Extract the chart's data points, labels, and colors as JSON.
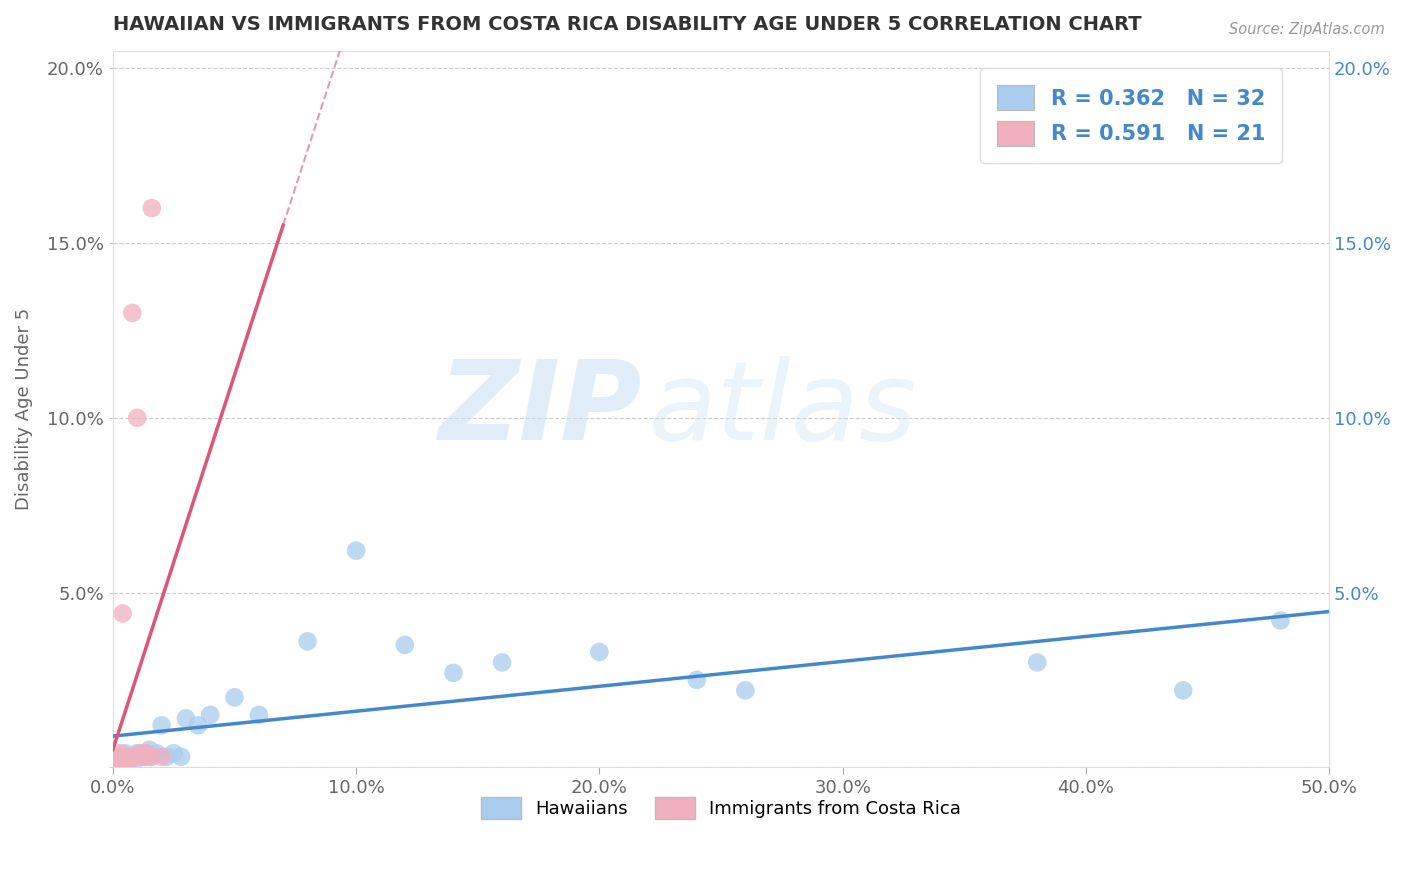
{
  "title": "HAWAIIAN VS IMMIGRANTS FROM COSTA RICA DISABILITY AGE UNDER 5 CORRELATION CHART",
  "source_text": "Source: ZipAtlas.com",
  "ylabel": "Disability Age Under 5",
  "xlim": [
    0.0,
    0.5
  ],
  "ylim": [
    0.0,
    0.205
  ],
  "xticks": [
    0.0,
    0.1,
    0.2,
    0.3,
    0.4,
    0.5
  ],
  "xticklabels": [
    "0.0%",
    "10.0%",
    "20.0%",
    "30.0%",
    "40.0%",
    "50.0%"
  ],
  "yticks": [
    0.0,
    0.05,
    0.1,
    0.15,
    0.2
  ],
  "yticklabels": [
    "",
    "5.0%",
    "10.0%",
    "15.0%",
    "20.0%"
  ],
  "hawaiian_color": "#aaccee",
  "costarica_color": "#f0b0c0",
  "hawaiian_line_color": "#4488cc",
  "costarica_line_color": "#dd5577",
  "R_hawaiian": 0.362,
  "N_hawaiian": 32,
  "R_costarica": 0.591,
  "N_costarica": 21,
  "legend_label_hawaiian": "Hawaiians",
  "legend_label_costarica": "Immigrants from Costa Rica",
  "watermark_zip": "ZIP",
  "watermark_atlas": "atlas",
  "background_color": "#ffffff",
  "grid_color": "#cccccc",
  "hawaiian_x": [
    0.002,
    0.004,
    0.005,
    0.006,
    0.008,
    0.009,
    0.01,
    0.012,
    0.013,
    0.015,
    0.016,
    0.018,
    0.02,
    0.022,
    0.025,
    0.028,
    0.03,
    0.035,
    0.04,
    0.05,
    0.06,
    0.08,
    0.1,
    0.12,
    0.14,
    0.16,
    0.2,
    0.24,
    0.26,
    0.38,
    0.44,
    0.48
  ],
  "hawaiian_y": [
    0.002,
    0.003,
    0.004,
    0.002,
    0.003,
    0.002,
    0.004,
    0.003,
    0.004,
    0.005,
    0.003,
    0.004,
    0.012,
    0.003,
    0.004,
    0.003,
    0.014,
    0.012,
    0.015,
    0.02,
    0.015,
    0.036,
    0.062,
    0.035,
    0.027,
    0.03,
    0.033,
    0.025,
    0.022,
    0.03,
    0.022,
    0.042
  ],
  "costarica_x": [
    0.001,
    0.002,
    0.003,
    0.003,
    0.004,
    0.004,
    0.005,
    0.005,
    0.006,
    0.007,
    0.008,
    0.008,
    0.009,
    0.01,
    0.011,
    0.012,
    0.013,
    0.014,
    0.015,
    0.016,
    0.02
  ],
  "costarica_y": [
    0.002,
    0.002,
    0.003,
    0.004,
    0.003,
    0.044,
    0.002,
    0.003,
    0.003,
    0.002,
    0.003,
    0.13,
    0.003,
    0.1,
    0.004,
    0.003,
    0.003,
    0.004,
    0.003,
    0.16,
    0.003
  ],
  "costarica_line_xmax": 0.07,
  "costarica_line_xmax_dashed": 0.3
}
